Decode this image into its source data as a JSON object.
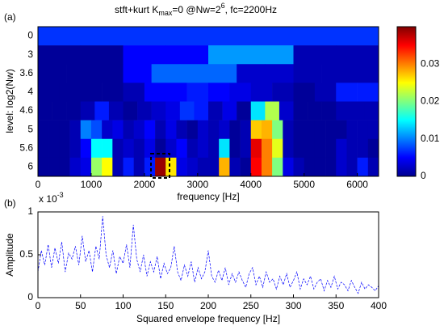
{
  "chart_data": [
    {
      "type": "heatmap",
      "panel_label": "(a)",
      "title": [
        "stft+kurt  K",
        "max",
        "=0 @Nw=2",
        "6",
        ", fc=2200Hz"
      ],
      "x_label": "frequency [Hz]",
      "y_label": "level: log2(Nw)",
      "categories": [
        "0",
        "3",
        "3.6",
        "4",
        "4.6",
        "5",
        "5.6",
        "6"
      ],
      "xlim": [
        0,
        6400
      ],
      "xticks": [
        0,
        1000,
        2000,
        3000,
        4000,
        5000,
        6000
      ],
      "colormap": "jet",
      "clim": [
        0,
        0.04
      ],
      "cticks": [
        0,
        0.01,
        0.02,
        0.03
      ],
      "values": [
        [
          0.007
        ],
        [
          0.001,
          0.001,
          0.005,
          0.005,
          0.011,
          0.011,
          0.002,
          0.002
        ],
        [
          0.001,
          0.001,
          0.001,
          0.005,
          0.009,
          0.009,
          0.009,
          0.003,
          0.003,
          0.002,
          0.002,
          0.002
        ],
        [
          0.001,
          0.001,
          0.001,
          0.001,
          0.002,
          0.005,
          0.005,
          0.006,
          0.005,
          0.004,
          0.003,
          0.002,
          0.001,
          0.002,
          0.006,
          0.006
        ],
        [
          0.001,
          0.001,
          0.001,
          0.002,
          0.006,
          0.002,
          0.001,
          0.002,
          0.003,
          0.004,
          0.007,
          0.006,
          0.002,
          0.004,
          0.001,
          0.014,
          0.022,
          0.003,
          0.001,
          0.001,
          0.001,
          0.002,
          0.002,
          0.002
        ],
        [
          0.001,
          0.001,
          0.001,
          0.002,
          0.01,
          0.008,
          0.003,
          0.004,
          0.002,
          0.003,
          0.005,
          0.002,
          0.004,
          0.002,
          0.001,
          0.003,
          0.002,
          0.003,
          0.001,
          0.002,
          0.027,
          0.028,
          0.02,
          0.002,
          0.001,
          0.001,
          0.001,
          0.001,
          0.001,
          0.002,
          0.002,
          0.002
        ],
        [
          0.001,
          0.001,
          0.001,
          0.002,
          0.005,
          0.015,
          0.015,
          0.002,
          0.003,
          0.002,
          0.004,
          0.001,
          0.003,
          0.005,
          0.002,
          0.003,
          0.002,
          0.014,
          0.001,
          0.002,
          0.036,
          0.03,
          0.024,
          0.002,
          0.001,
          0.001,
          0.001,
          0.001,
          0.003,
          0.002,
          0.002,
          0.001
        ],
        [
          0.001,
          0.001,
          0.001,
          0.003,
          0.004,
          0.021,
          0.025,
          0.002,
          0.006,
          0.002,
          0.006,
          0.039,
          0.026,
          0.004,
          0.003,
          0.002,
          0.002,
          0.028,
          0.002,
          0.001,
          0.035,
          0.03,
          0.02,
          0.004,
          0.002,
          0.001,
          0.001,
          0.001,
          0.003,
          0.002,
          0.006,
          0.002
        ]
      ]
    },
    {
      "type": "line",
      "panel_label": "(b)",
      "x_label": "Squared envelope frequency [Hz]",
      "y_label": "Amplitude",
      "y_multiplier": [
        "x 10",
        "-3"
      ],
      "color": "#0000ff",
      "line_style": "dashed",
      "xlim": [
        0,
        400
      ],
      "xticks": [
        0,
        50,
        100,
        150,
        200,
        250,
        300,
        350,
        400
      ],
      "ylim": [
        0,
        1
      ],
      "yticks": [
        0,
        0.5,
        1
      ],
      "x": [
        0,
        4,
        8,
        12,
        16,
        20,
        24,
        28,
        32,
        36,
        40,
        44,
        48,
        52,
        56,
        60,
        64,
        68,
        72,
        76,
        80,
        84,
        88,
        92,
        96,
        100,
        104,
        108,
        112,
        116,
        120,
        124,
        128,
        132,
        136,
        140,
        144,
        148,
        152,
        156,
        160,
        164,
        168,
        172,
        176,
        180,
        184,
        188,
        192,
        196,
        200,
        204,
        208,
        212,
        216,
        220,
        224,
        228,
        232,
        236,
        240,
        244,
        248,
        252,
        256,
        260,
        264,
        268,
        272,
        276,
        280,
        284,
        288,
        292,
        296,
        300,
        304,
        308,
        312,
        316,
        320,
        324,
        328,
        332,
        336,
        340,
        344,
        348,
        352,
        356,
        360,
        364,
        368,
        372,
        376,
        380,
        384,
        388,
        392,
        396,
        400
      ],
      "values": [
        0.3,
        0.55,
        0.38,
        0.62,
        0.35,
        0.58,
        0.4,
        0.65,
        0.3,
        0.52,
        0.45,
        0.6,
        0.38,
        0.72,
        0.42,
        0.55,
        0.3,
        0.6,
        0.45,
        0.95,
        0.5,
        0.35,
        0.55,
        0.28,
        0.48,
        0.4,
        0.62,
        0.35,
        0.85,
        0.45,
        0.3,
        0.5,
        0.25,
        0.42,
        0.3,
        0.48,
        0.22,
        0.4,
        0.28,
        0.35,
        0.6,
        0.3,
        0.2,
        0.38,
        0.25,
        0.42,
        0.18,
        0.35,
        0.22,
        0.3,
        0.55,
        0.25,
        0.18,
        0.32,
        0.2,
        0.35,
        0.15,
        0.28,
        0.18,
        0.3,
        0.2,
        0.12,
        0.28,
        0.35,
        0.15,
        0.25,
        0.12,
        0.3,
        0.18,
        0.22,
        0.1,
        0.25,
        0.15,
        0.28,
        0.12,
        0.2,
        0.3,
        0.1,
        0.22,
        0.15,
        0.25,
        0.1,
        0.18,
        0.22,
        0.08,
        0.2,
        0.12,
        0.25,
        0.1,
        0.18,
        0.15,
        0.08,
        0.2,
        0.12,
        0.05,
        0.18,
        0.1,
        0.15,
        0.12,
        0.08,
        0.14
      ]
    }
  ]
}
